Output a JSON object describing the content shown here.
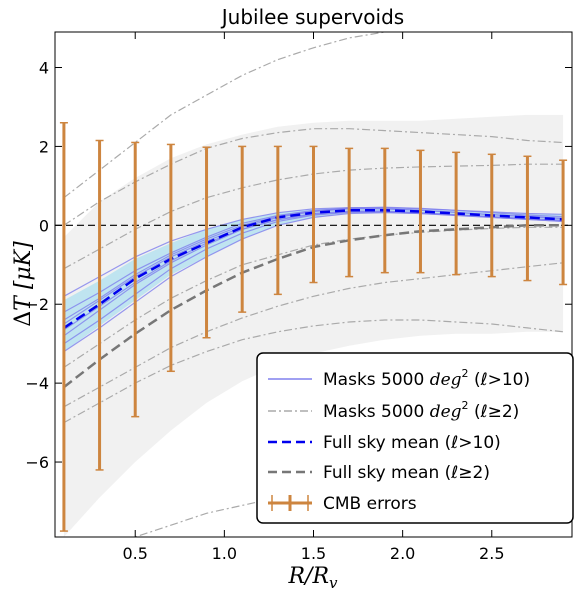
{
  "chart_data": {
    "type": "line",
    "title": "Jubilee supervoids",
    "xlabel": "R/R_v",
    "ylabel": "ΔT [μK]",
    "xlim": [
      0.05,
      2.95
    ],
    "ylim": [
      -7.9,
      4.9
    ],
    "grid": false,
    "legend_position": "lower-right",
    "x_ticks": [
      {
        "value": 0.5,
        "label": "0.5"
      },
      {
        "value": 1.0,
        "label": "1.0"
      },
      {
        "value": 1.5,
        "label": "1.5"
      },
      {
        "value": 2.0,
        "label": "2.0"
      },
      {
        "value": 2.5,
        "label": "2.5"
      }
    ],
    "y_ticks": [
      {
        "value": -6,
        "label": "−6"
      },
      {
        "value": -4,
        "label": "−4"
      },
      {
        "value": -2,
        "label": "−2"
      },
      {
        "value": 0,
        "label": "0"
      },
      {
        "value": 2,
        "label": "2"
      },
      {
        "value": 4,
        "label": "4"
      }
    ],
    "reference_line": {
      "y": 0,
      "style": "dashed",
      "color": "#000000"
    },
    "colors": {
      "masks_l10": "#8080ee",
      "masks_l2": "#aaaaaa",
      "full_sky_l10": "#0000ee",
      "full_sky_l2": "#777777",
      "cmb_errors": "#cd853f",
      "band_l10": "#9fdcf0",
      "band_l2": "#eeeeee"
    },
    "x": [
      0.1,
      0.3,
      0.5,
      0.7,
      0.9,
      1.1,
      1.3,
      1.5,
      1.7,
      1.9,
      2.1,
      2.3,
      2.5,
      2.7,
      2.9
    ],
    "series": [
      {
        "name": "Full sky mean (ℓ>10)",
        "style": "dashed",
        "values": [
          -2.6,
          -2.0,
          -1.35,
          -0.85,
          -0.45,
          -0.05,
          0.2,
          0.32,
          0.38,
          0.38,
          0.35,
          0.3,
          0.25,
          0.2,
          0.15
        ]
      },
      {
        "name": "Full sky mean (ℓ≥2)",
        "style": "dashed",
        "values": [
          -4.1,
          -3.4,
          -2.75,
          -2.15,
          -1.65,
          -1.2,
          -0.85,
          -0.55,
          -0.38,
          -0.25,
          -0.15,
          -0.1,
          -0.05,
          0.0,
          0.0
        ]
      }
    ],
    "mask_curves_l10": [
      [
        -1.8,
        -1.3,
        -0.8,
        -0.4,
        -0.1,
        0.15,
        0.32,
        0.42,
        0.45,
        0.45,
        0.42,
        0.38,
        0.34,
        0.3,
        0.28
      ],
      [
        -2.2,
        -1.7,
        -1.15,
        -0.7,
        -0.3,
        0.05,
        0.25,
        0.38,
        0.43,
        0.42,
        0.38,
        0.33,
        0.27,
        0.22,
        0.18
      ],
      [
        -2.5,
        -1.9,
        -1.3,
        -0.8,
        -0.4,
        -0.05,
        0.2,
        0.35,
        0.42,
        0.42,
        0.38,
        0.33,
        0.27,
        0.22,
        0.17
      ],
      [
        -2.8,
        -2.15,
        -1.5,
        -0.95,
        -0.5,
        -0.1,
        0.15,
        0.3,
        0.36,
        0.36,
        0.32,
        0.27,
        0.22,
        0.17,
        0.13
      ],
      [
        -3.0,
        -2.4,
        -1.75,
        -1.1,
        -0.6,
        -0.2,
        0.1,
        0.26,
        0.33,
        0.33,
        0.3,
        0.26,
        0.21,
        0.16,
        0.12
      ],
      [
        -3.2,
        -2.6,
        -1.95,
        -1.3,
        -0.8,
        -0.35,
        0.0,
        0.2,
        0.3,
        0.32,
        0.3,
        0.25,
        0.2,
        0.15,
        0.1
      ],
      [
        -2.4,
        -1.85,
        -1.25,
        -0.75,
        -0.35,
        0.0,
        0.22,
        0.36,
        0.44,
        0.46,
        0.43,
        0.38,
        0.32,
        0.26,
        0.22
      ],
      [
        -2.65,
        -2.05,
        -1.45,
        -0.9,
        -0.45,
        -0.1,
        0.14,
        0.28,
        0.34,
        0.35,
        0.31,
        0.26,
        0.2,
        0.15,
        0.1
      ]
    ],
    "mask_curves_l2": [
      [
        0.7,
        1.4,
        2.1,
        2.8,
        3.3,
        3.8,
        4.2,
        4.5,
        4.75,
        4.9,
        5.0,
        5.05,
        5.0,
        4.95,
        4.9
      ],
      [
        0.0,
        0.6,
        1.1,
        1.55,
        1.95,
        2.2,
        2.35,
        2.45,
        2.45,
        2.4,
        2.35,
        2.3,
        2.25,
        2.15,
        2.1
      ],
      [
        -1.1,
        -0.6,
        -0.1,
        0.35,
        0.7,
        0.95,
        1.15,
        1.3,
        1.4,
        1.45,
        1.48,
        1.5,
        1.52,
        1.55,
        1.55
      ],
      [
        -3.6,
        -3.0,
        -2.4,
        -1.85,
        -1.4,
        -1.0,
        -0.75,
        -0.5,
        -0.35,
        -0.25,
        -0.18,
        -0.12,
        -0.08,
        -0.05,
        -0.05
      ],
      [
        -4.6,
        -4.1,
        -3.6,
        -3.1,
        -2.7,
        -2.35,
        -2.05,
        -1.8,
        -1.6,
        -1.45,
        -1.35,
        -1.25,
        -1.15,
        -1.05,
        -0.95
      ],
      [
        -5.0,
        -4.5,
        -4.0,
        -3.55,
        -3.2,
        -2.9,
        -2.7,
        -2.55,
        -2.45,
        -2.4,
        -2.4,
        -2.45,
        -2.5,
        -2.6,
        -2.7
      ],
      [
        -8.5,
        -8.2,
        -7.9,
        -7.6,
        -7.3,
        -7.1,
        -6.9,
        -6.8,
        -6.75,
        -6.7,
        -6.7,
        -6.7,
        -6.75,
        -6.8,
        -6.85
      ]
    ],
    "cmb_errors": {
      "name": "CMB errors",
      "center": [
        -2.6,
        -2.0,
        -1.35,
        -0.85,
        -0.45,
        -0.05,
        0.2,
        0.32,
        0.38,
        0.38,
        0.35,
        0.3,
        0.25,
        0.2,
        0.15
      ],
      "upper": [
        2.6,
        2.15,
        2.1,
        2.05,
        1.98,
        2.0,
        2.0,
        2.0,
        1.95,
        1.95,
        1.9,
        1.85,
        1.8,
        1.75,
        1.65
      ],
      "lower": [
        -7.75,
        -6.2,
        -4.85,
        -3.7,
        -2.85,
        -2.2,
        -1.75,
        -1.45,
        -1.3,
        -1.2,
        -1.2,
        -1.25,
        -1.3,
        -1.4,
        -1.5
      ]
    },
    "band_l2": {
      "upper": [
        -0.3,
        0.6,
        1.2,
        1.7,
        2.05,
        2.3,
        2.5,
        2.6,
        2.65,
        2.65,
        2.65,
        2.7,
        2.75,
        2.8,
        2.8
      ],
      "lower": [
        -7.9,
        -6.9,
        -6.0,
        -5.2,
        -4.5,
        -3.95,
        -3.55,
        -3.25,
        -3.05,
        -2.9,
        -2.8,
        -2.75,
        -2.75,
        -2.7,
        -2.7
      ]
    },
    "band_l10": {
      "upper": [
        -1.9,
        -1.4,
        -0.85,
        -0.45,
        -0.1,
        0.15,
        0.32,
        0.42,
        0.45,
        0.45,
        0.42,
        0.38,
        0.34,
        0.3,
        0.28
      ],
      "lower": [
        -3.2,
        -2.55,
        -1.9,
        -1.25,
        -0.8,
        -0.35,
        0.0,
        0.2,
        0.3,
        0.32,
        0.3,
        0.25,
        0.2,
        0.15,
        0.1
      ]
    }
  },
  "legend": {
    "items": [
      {
        "key": "masks_l10",
        "prefix": "Masks 5000 ",
        "unit": "deg",
        "sup": "2",
        "suffix": " (ℓ>10)"
      },
      {
        "key": "masks_l2",
        "prefix": "Masks 5000 ",
        "unit": "deg",
        "sup": "2",
        "suffix": " (ℓ≥2)"
      },
      {
        "key": "full_sky_l10",
        "text": "Full sky mean (ℓ>10)"
      },
      {
        "key": "full_sky_l2",
        "text": "Full sky mean (ℓ≥2)"
      },
      {
        "key": "cmb_errors",
        "text": "CMB errors"
      }
    ]
  }
}
